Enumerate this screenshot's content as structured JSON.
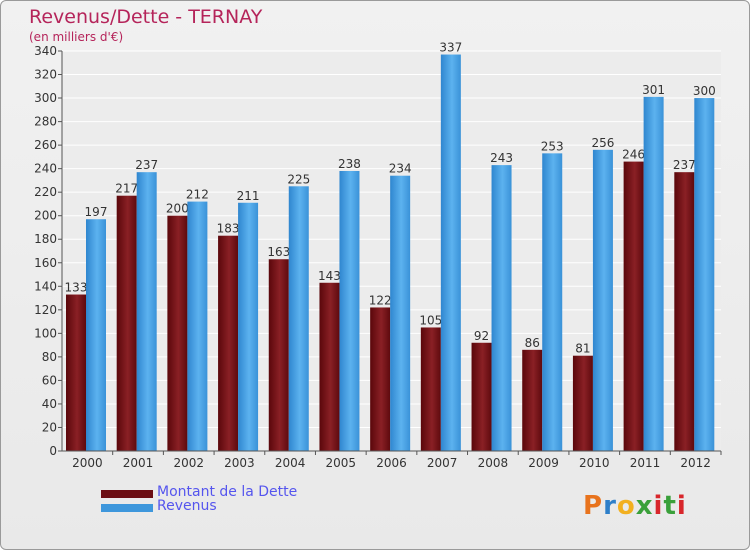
{
  "header": {
    "title": "Revenus/Dette - TERNAY",
    "subtitle": "(en milliers d'€)"
  },
  "legend": {
    "items": [
      {
        "label": "Montant de la Dette",
        "color": "#6b0d12"
      },
      {
        "label": "Revenus",
        "color": "#3e97dc"
      }
    ]
  },
  "logo": {
    "text": "Proxiti",
    "colors": [
      "#e8731d",
      "#2e7fc9",
      "#f2b020",
      "#3aa03a",
      "#d8262b",
      "#3aa03a",
      "#d8262b"
    ]
  },
  "chart_data": {
    "type": "bar",
    "categories": [
      "2000",
      "2001",
      "2002",
      "2003",
      "2004",
      "2005",
      "2006",
      "2007",
      "2008",
      "2009",
      "2010",
      "2011",
      "2012"
    ],
    "series": [
      {
        "name": "Montant de la Dette",
        "color": "#6b0d12",
        "values": [
          133,
          217,
          200,
          183,
          163,
          143,
          122,
          105,
          92,
          86,
          81,
          246,
          237
        ]
      },
      {
        "name": "Revenus",
        "color": "#3e97dc",
        "values": [
          197,
          237,
          212,
          211,
          225,
          238,
          234,
          337,
          243,
          253,
          256,
          301,
          300
        ]
      }
    ],
    "ylim": [
      0,
      340
    ],
    "yticks": [
      0,
      20,
      40,
      60,
      80,
      100,
      120,
      140,
      160,
      180,
      200,
      220,
      240,
      260,
      280,
      300,
      320,
      340
    ],
    "grid": true,
    "data_labels": true,
    "title": "Revenus/Dette - TERNAY",
    "ylabel": "(en milliers d'€)",
    "legend_position": "bottom"
  }
}
